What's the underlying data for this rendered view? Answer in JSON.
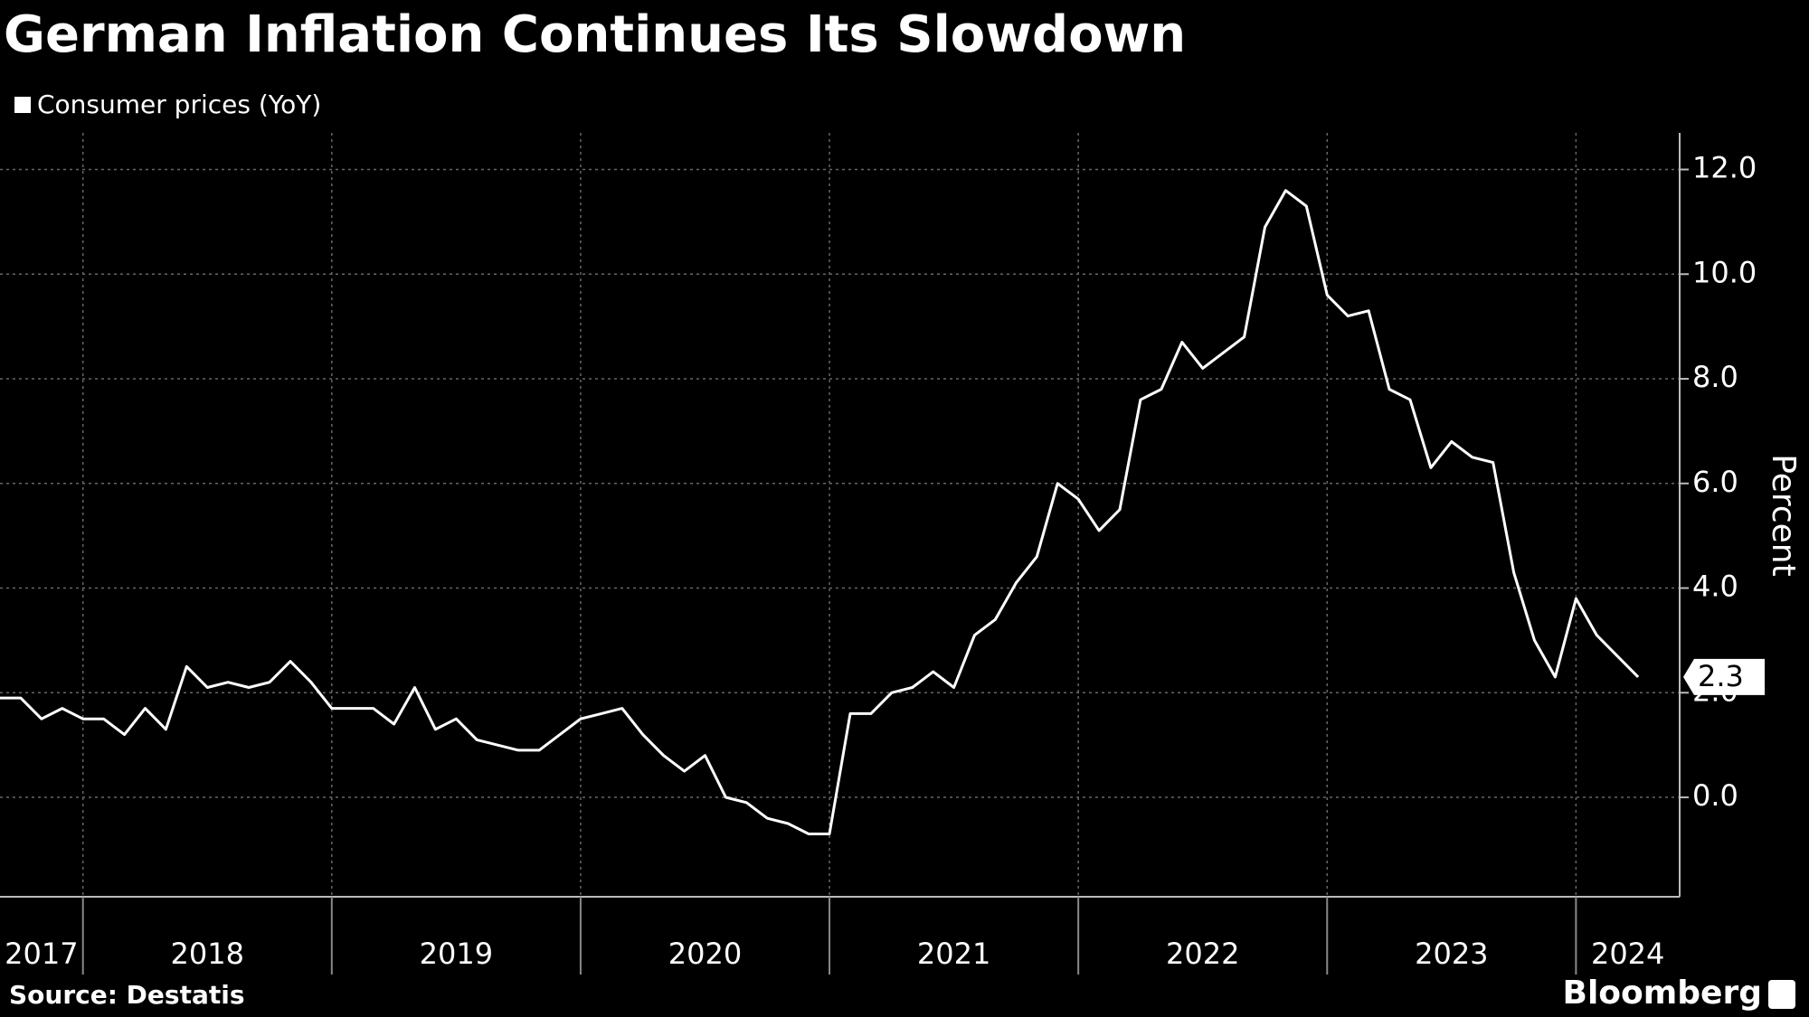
{
  "chart_data": {
    "type": "line",
    "title": "German Inflation Continues Its Slowdown",
    "y_label": "Percent",
    "source": "Source: Destatis",
    "brand": "Bloomberg",
    "x": [
      "2017-08",
      "2017-09",
      "2017-10",
      "2017-11",
      "2017-12",
      "2018-01",
      "2018-02",
      "2018-03",
      "2018-04",
      "2018-05",
      "2018-06",
      "2018-07",
      "2018-08",
      "2018-09",
      "2018-10",
      "2018-11",
      "2018-12",
      "2019-01",
      "2019-02",
      "2019-03",
      "2019-04",
      "2019-05",
      "2019-06",
      "2019-07",
      "2019-08",
      "2019-09",
      "2019-10",
      "2019-11",
      "2019-12",
      "2020-01",
      "2020-02",
      "2020-03",
      "2020-04",
      "2020-05",
      "2020-06",
      "2020-07",
      "2020-08",
      "2020-09",
      "2020-10",
      "2020-11",
      "2020-12",
      "2021-01",
      "2021-02",
      "2021-03",
      "2021-04",
      "2021-05",
      "2021-06",
      "2021-07",
      "2021-08",
      "2021-09",
      "2021-10",
      "2021-11",
      "2021-12",
      "2022-01",
      "2022-02",
      "2022-03",
      "2022-04",
      "2022-05",
      "2022-06",
      "2022-07",
      "2022-08",
      "2022-09",
      "2022-10",
      "2022-11",
      "2022-12",
      "2023-01",
      "2023-02",
      "2023-03",
      "2023-04",
      "2023-05",
      "2023-06",
      "2023-07",
      "2023-08",
      "2023-09",
      "2023-10",
      "2023-11",
      "2023-12",
      "2024-01",
      "2024-02",
      "2024-03"
    ],
    "series": [
      {
        "name": "Consumer prices (YoY)",
        "color": "#ffffff",
        "values": [
          1.9,
          1.9,
          1.5,
          1.7,
          1.5,
          1.5,
          1.2,
          1.7,
          1.3,
          2.5,
          2.1,
          2.2,
          2.1,
          2.2,
          2.6,
          2.2,
          1.7,
          1.7,
          1.7,
          1.4,
          2.1,
          1.3,
          1.5,
          1.1,
          1.0,
          0.9,
          0.9,
          1.2,
          1.5,
          1.6,
          1.7,
          1.2,
          0.8,
          0.5,
          0.8,
          0.0,
          -0.1,
          -0.4,
          -0.5,
          -0.7,
          -0.7,
          1.6,
          1.6,
          2.0,
          2.1,
          2.4,
          2.1,
          3.1,
          3.4,
          4.1,
          4.6,
          6.0,
          5.7,
          5.1,
          5.5,
          7.6,
          7.8,
          8.7,
          8.2,
          8.5,
          8.8,
          10.9,
          11.6,
          11.3,
          9.6,
          9.2,
          9.3,
          7.8,
          7.6,
          6.3,
          6.8,
          6.5,
          6.4,
          4.3,
          3.0,
          2.3,
          3.8,
          3.1,
          2.7,
          2.3
        ]
      }
    ],
    "xlim": [
      "2017-08",
      "2024-05"
    ],
    "xticks": [
      "2017",
      "2018",
      "2019",
      "2020",
      "2021",
      "2022",
      "2023",
      "2024"
    ],
    "ylim": [
      -1.9,
      12.7
    ],
    "yticks": [
      {
        "value": 0,
        "label": "0.0"
      },
      {
        "value": 2,
        "label": "2.0"
      },
      {
        "value": 4,
        "label": "4.0"
      },
      {
        "value": 6,
        "label": "6.0"
      },
      {
        "value": 8,
        "label": "8.0"
      },
      {
        "value": 10,
        "label": "10.0"
      },
      {
        "value": 12,
        "label": "12.0"
      }
    ],
    "grid": true
  }
}
